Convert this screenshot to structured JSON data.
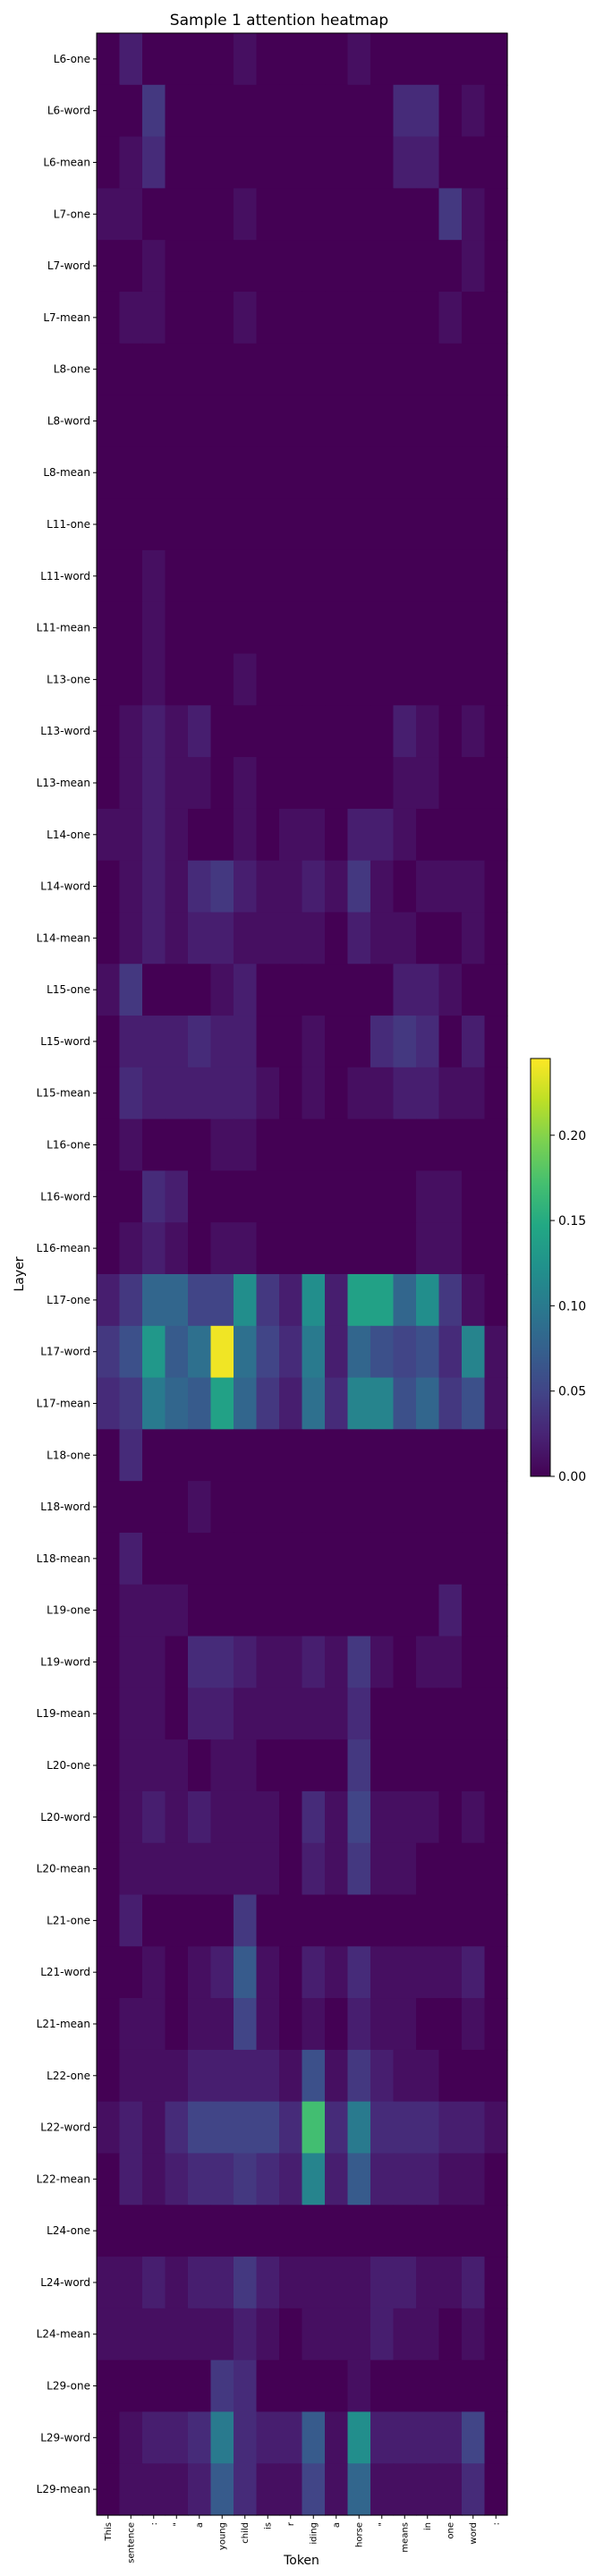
{
  "chart_data": {
    "type": "heatmap",
    "title": "Sample 1 attention heatmap",
    "xlabel": "Token",
    "ylabel": "Layer",
    "tokens": [
      "This",
      "sentence",
      ":",
      "\"",
      "a",
      "young",
      "child",
      "is",
      "r",
      "iding",
      "a",
      "horse",
      "\"",
      "means",
      "in",
      "one",
      "word",
      ":"
    ],
    "layers": [
      "L6-one",
      "L6-word",
      "L6-mean",
      "L7-one",
      "L7-word",
      "L7-mean",
      "L8-one",
      "L8-word",
      "L8-mean",
      "L11-one",
      "L11-word",
      "L11-mean",
      "L13-one",
      "L13-word",
      "L13-mean",
      "L14-one",
      "L14-word",
      "L14-mean",
      "L15-one",
      "L15-word",
      "L15-mean",
      "L16-one",
      "L16-word",
      "L16-mean",
      "L17-one",
      "L17-word",
      "L17-mean",
      "L18-one",
      "L18-word",
      "L18-mean",
      "L19-one",
      "L19-word",
      "L19-mean",
      "L20-one",
      "L20-word",
      "L20-mean",
      "L21-one",
      "L21-word",
      "L21-mean",
      "L22-one",
      "L22-word",
      "L22-mean",
      "L24-one",
      "L24-word",
      "L24-mean",
      "L29-one",
      "L29-word",
      "L29-mean"
    ],
    "colorbar": {
      "colormap": "viridis",
      "vmin": 0.0,
      "vmax": 0.245,
      "ticks": [
        "0.00",
        "0.05",
        "0.10",
        "0.15",
        "0.20"
      ],
      "tick_values": [
        0.0,
        0.05,
        0.1,
        0.15,
        0.2
      ]
    },
    "values": [
      [
        0.0,
        0.02,
        0.0,
        0.0,
        0.0,
        0.0,
        0.01,
        0.0,
        0.0,
        0.0,
        0.0,
        0.01,
        0.0,
        0.0,
        0.0,
        0.0,
        0.0,
        0.0
      ],
      [
        0.0,
        0.0,
        0.04,
        0.0,
        0.0,
        0.0,
        0.0,
        0.0,
        0.0,
        0.0,
        0.0,
        0.0,
        0.0,
        0.03,
        0.03,
        0.0,
        0.01,
        0.0
      ],
      [
        0.0,
        0.01,
        0.03,
        0.0,
        0.0,
        0.0,
        0.0,
        0.0,
        0.0,
        0.0,
        0.0,
        0.0,
        0.0,
        0.02,
        0.02,
        0.0,
        0.0,
        0.0
      ],
      [
        0.01,
        0.01,
        0.0,
        0.0,
        0.0,
        0.0,
        0.01,
        0.0,
        0.0,
        0.0,
        0.0,
        0.0,
        0.0,
        0.0,
        0.0,
        0.04,
        0.01,
        0.0
      ],
      [
        0.0,
        0.0,
        0.01,
        0.0,
        0.0,
        0.0,
        0.0,
        0.0,
        0.0,
        0.0,
        0.0,
        0.0,
        0.0,
        0.0,
        0.0,
        0.0,
        0.01,
        0.0
      ],
      [
        0.0,
        0.01,
        0.01,
        0.0,
        0.0,
        0.0,
        0.01,
        0.0,
        0.0,
        0.0,
        0.0,
        0.0,
        0.0,
        0.0,
        0.0,
        0.01,
        0.0,
        0.0
      ],
      [
        0.0,
        0.0,
        0.0,
        0.0,
        0.0,
        0.0,
        0.0,
        0.0,
        0.0,
        0.0,
        0.0,
        0.0,
        0.0,
        0.0,
        0.0,
        0.0,
        0.0,
        0.0
      ],
      [
        0.0,
        0.0,
        0.0,
        0.0,
        0.0,
        0.0,
        0.0,
        0.0,
        0.0,
        0.0,
        0.0,
        0.0,
        0.0,
        0.0,
        0.0,
        0.0,
        0.0,
        0.0
      ],
      [
        0.0,
        0.0,
        0.0,
        0.0,
        0.0,
        0.0,
        0.0,
        0.0,
        0.0,
        0.0,
        0.0,
        0.0,
        0.0,
        0.0,
        0.0,
        0.0,
        0.0,
        0.0
      ],
      [
        0.0,
        0.0,
        0.0,
        0.0,
        0.0,
        0.0,
        0.0,
        0.0,
        0.0,
        0.0,
        0.0,
        0.0,
        0.0,
        0.0,
        0.0,
        0.0,
        0.0,
        0.0
      ],
      [
        0.0,
        0.0,
        0.01,
        0.0,
        0.0,
        0.0,
        0.0,
        0.0,
        0.0,
        0.0,
        0.0,
        0.0,
        0.0,
        0.0,
        0.0,
        0.0,
        0.0,
        0.0
      ],
      [
        0.0,
        0.0,
        0.01,
        0.0,
        0.0,
        0.0,
        0.0,
        0.0,
        0.0,
        0.0,
        0.0,
        0.0,
        0.0,
        0.0,
        0.0,
        0.0,
        0.0,
        0.0
      ],
      [
        0.0,
        0.0,
        0.01,
        0.0,
        0.0,
        0.0,
        0.01,
        0.0,
        0.0,
        0.0,
        0.0,
        0.0,
        0.0,
        0.0,
        0.0,
        0.0,
        0.0,
        0.0
      ],
      [
        0.0,
        0.01,
        0.02,
        0.01,
        0.02,
        0.0,
        0.0,
        0.0,
        0.0,
        0.0,
        0.0,
        0.0,
        0.0,
        0.02,
        0.01,
        0.0,
        0.01,
        0.0
      ],
      [
        0.0,
        0.01,
        0.02,
        0.01,
        0.01,
        0.0,
        0.01,
        0.0,
        0.0,
        0.0,
        0.0,
        0.0,
        0.0,
        0.01,
        0.01,
        0.0,
        0.0,
        0.0
      ],
      [
        0.01,
        0.01,
        0.02,
        0.01,
        0.0,
        0.0,
        0.01,
        0.0,
        0.01,
        0.01,
        0.0,
        0.02,
        0.02,
        0.01,
        0.0,
        0.0,
        0.0,
        0.0
      ],
      [
        0.0,
        0.01,
        0.02,
        0.01,
        0.03,
        0.04,
        0.02,
        0.01,
        0.01,
        0.02,
        0.01,
        0.04,
        0.01,
        0.0,
        0.01,
        0.01,
        0.01,
        0.0
      ],
      [
        0.0,
        0.01,
        0.02,
        0.01,
        0.02,
        0.02,
        0.01,
        0.01,
        0.01,
        0.01,
        0.0,
        0.02,
        0.01,
        0.01,
        0.0,
        0.0,
        0.01,
        0.0
      ],
      [
        0.01,
        0.04,
        0.0,
        0.0,
        0.0,
        0.01,
        0.02,
        0.0,
        0.0,
        0.0,
        0.0,
        0.0,
        0.0,
        0.02,
        0.02,
        0.01,
        0.0,
        0.0
      ],
      [
        0.0,
        0.02,
        0.02,
        0.02,
        0.03,
        0.02,
        0.02,
        0.0,
        0.0,
        0.01,
        0.0,
        0.0,
        0.03,
        0.04,
        0.03,
        0.0,
        0.02,
        0.0
      ],
      [
        0.0,
        0.03,
        0.02,
        0.02,
        0.02,
        0.02,
        0.02,
        0.01,
        0.0,
        0.01,
        0.0,
        0.01,
        0.01,
        0.02,
        0.02,
        0.01,
        0.01,
        0.0
      ],
      [
        0.0,
        0.01,
        0.0,
        0.0,
        0.0,
        0.01,
        0.01,
        0.0,
        0.0,
        0.0,
        0.0,
        0.0,
        0.0,
        0.0,
        0.0,
        0.0,
        0.0,
        0.0
      ],
      [
        0.0,
        0.0,
        0.03,
        0.02,
        0.0,
        0.0,
        0.0,
        0.0,
        0.0,
        0.0,
        0.0,
        0.0,
        0.0,
        0.0,
        0.01,
        0.01,
        0.0,
        0.0
      ],
      [
        0.0,
        0.01,
        0.02,
        0.01,
        0.0,
        0.01,
        0.01,
        0.0,
        0.0,
        0.0,
        0.0,
        0.0,
        0.0,
        0.0,
        0.01,
        0.01,
        0.0,
        0.0
      ],
      [
        0.02,
        0.04,
        0.08,
        0.08,
        0.05,
        0.05,
        0.12,
        0.04,
        0.02,
        0.12,
        0.02,
        0.14,
        0.14,
        0.08,
        0.12,
        0.04,
        0.01,
        0.0
      ],
      [
        0.04,
        0.06,
        0.13,
        0.07,
        0.09,
        0.24,
        0.09,
        0.05,
        0.03,
        0.1,
        0.02,
        0.08,
        0.06,
        0.05,
        0.06,
        0.03,
        0.11,
        0.01
      ],
      [
        0.03,
        0.04,
        0.1,
        0.08,
        0.07,
        0.14,
        0.08,
        0.04,
        0.02,
        0.09,
        0.03,
        0.11,
        0.11,
        0.06,
        0.08,
        0.04,
        0.06,
        0.01
      ],
      [
        0.0,
        0.03,
        0.0,
        0.0,
        0.0,
        0.0,
        0.0,
        0.0,
        0.0,
        0.0,
        0.0,
        0.0,
        0.0,
        0.0,
        0.0,
        0.0,
        0.0,
        0.0
      ],
      [
        0.0,
        0.0,
        0.0,
        0.0,
        0.01,
        0.0,
        0.0,
        0.0,
        0.0,
        0.0,
        0.0,
        0.0,
        0.0,
        0.0,
        0.0,
        0.0,
        0.0,
        0.0
      ],
      [
        0.0,
        0.02,
        0.0,
        0.0,
        0.0,
        0.0,
        0.0,
        0.0,
        0.0,
        0.0,
        0.0,
        0.0,
        0.0,
        0.0,
        0.0,
        0.0,
        0.0,
        0.0
      ],
      [
        0.0,
        0.01,
        0.01,
        0.01,
        0.0,
        0.0,
        0.0,
        0.0,
        0.0,
        0.0,
        0.0,
        0.0,
        0.0,
        0.0,
        0.0,
        0.02,
        0.0,
        0.0
      ],
      [
        0.0,
        0.01,
        0.01,
        0.0,
        0.03,
        0.03,
        0.02,
        0.01,
        0.01,
        0.02,
        0.01,
        0.04,
        0.01,
        0.0,
        0.01,
        0.01,
        0.0,
        0.0
      ],
      [
        0.0,
        0.01,
        0.01,
        0.0,
        0.02,
        0.02,
        0.01,
        0.01,
        0.01,
        0.01,
        0.01,
        0.03,
        0.0,
        0.0,
        0.0,
        0.0,
        0.0,
        0.0
      ],
      [
        0.0,
        0.01,
        0.01,
        0.01,
        0.0,
        0.01,
        0.01,
        0.0,
        0.0,
        0.0,
        0.0,
        0.04,
        0.0,
        0.0,
        0.0,
        0.0,
        0.0,
        0.0
      ],
      [
        0.0,
        0.01,
        0.02,
        0.01,
        0.02,
        0.01,
        0.01,
        0.01,
        0.0,
        0.03,
        0.01,
        0.05,
        0.01,
        0.01,
        0.01,
        0.0,
        0.01,
        0.0
      ],
      [
        0.0,
        0.01,
        0.01,
        0.01,
        0.01,
        0.01,
        0.01,
        0.01,
        0.0,
        0.02,
        0.01,
        0.04,
        0.01,
        0.01,
        0.0,
        0.0,
        0.0,
        0.0
      ],
      [
        0.0,
        0.02,
        0.0,
        0.0,
        0.0,
        0.0,
        0.04,
        0.0,
        0.0,
        0.0,
        0.0,
        0.0,
        0.0,
        0.0,
        0.0,
        0.0,
        0.0,
        0.0
      ],
      [
        0.0,
        0.0,
        0.01,
        0.0,
        0.01,
        0.02,
        0.07,
        0.01,
        0.0,
        0.02,
        0.01,
        0.03,
        0.01,
        0.01,
        0.01,
        0.01,
        0.02,
        0.0
      ],
      [
        0.0,
        0.01,
        0.01,
        0.0,
        0.01,
        0.01,
        0.05,
        0.01,
        0.0,
        0.01,
        0.0,
        0.02,
        0.01,
        0.01,
        0.0,
        0.0,
        0.01,
        0.0
      ],
      [
        0.0,
        0.01,
        0.01,
        0.01,
        0.02,
        0.02,
        0.02,
        0.02,
        0.01,
        0.06,
        0.01,
        0.04,
        0.02,
        0.01,
        0.01,
        0.0,
        0.0,
        0.0
      ],
      [
        0.01,
        0.02,
        0.01,
        0.03,
        0.05,
        0.05,
        0.05,
        0.05,
        0.03,
        0.17,
        0.03,
        0.1,
        0.03,
        0.03,
        0.03,
        0.02,
        0.02,
        0.01
      ],
      [
        0.0,
        0.02,
        0.01,
        0.02,
        0.03,
        0.03,
        0.04,
        0.03,
        0.02,
        0.11,
        0.02,
        0.07,
        0.02,
        0.02,
        0.02,
        0.01,
        0.01,
        0.0
      ],
      [
        0.0,
        0.0,
        0.0,
        0.0,
        0.0,
        0.0,
        0.0,
        0.0,
        0.0,
        0.0,
        0.0,
        0.0,
        0.0,
        0.0,
        0.0,
        0.0,
        0.0,
        0.0
      ],
      [
        0.01,
        0.01,
        0.02,
        0.01,
        0.02,
        0.02,
        0.04,
        0.02,
        0.01,
        0.01,
        0.01,
        0.01,
        0.02,
        0.02,
        0.01,
        0.01,
        0.02,
        0.0
      ],
      [
        0.01,
        0.01,
        0.01,
        0.01,
        0.01,
        0.01,
        0.02,
        0.01,
        0.0,
        0.01,
        0.01,
        0.01,
        0.02,
        0.01,
        0.01,
        0.0,
        0.01,
        0.0
      ],
      [
        0.0,
        0.0,
        0.0,
        0.0,
        0.0,
        0.04,
        0.03,
        0.0,
        0.0,
        0.0,
        0.0,
        0.01,
        0.0,
        0.0,
        0.0,
        0.0,
        0.0,
        0.0
      ],
      [
        0.0,
        0.01,
        0.02,
        0.02,
        0.03,
        0.1,
        0.03,
        0.02,
        0.02,
        0.07,
        0.01,
        0.12,
        0.02,
        0.02,
        0.02,
        0.02,
        0.05,
        0.0
      ],
      [
        0.0,
        0.01,
        0.01,
        0.01,
        0.02,
        0.07,
        0.03,
        0.01,
        0.01,
        0.05,
        0.01,
        0.08,
        0.01,
        0.01,
        0.01,
        0.01,
        0.03,
        0.0
      ]
    ]
  }
}
